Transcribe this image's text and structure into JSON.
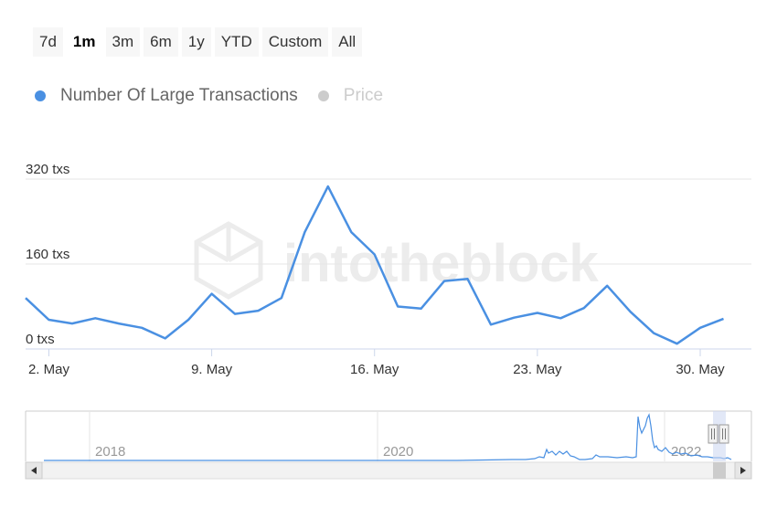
{
  "range_selector": {
    "buttons": [
      "7d",
      "1m",
      "3m",
      "6m",
      "1y",
      "YTD",
      "Custom",
      "All"
    ],
    "active": "1m"
  },
  "legend": [
    {
      "name": "Number Of Large Transactions",
      "color": "#4a90e2",
      "active": true
    },
    {
      "name": "Price",
      "color": "#cccccc",
      "active": false
    }
  ],
  "watermark": "intotheblock",
  "chart_data": {
    "type": "line",
    "series": [
      {
        "name": "Number Of Large Transactions",
        "color": "#4a90e2",
        "x": [
          1,
          2,
          3,
          4,
          5,
          6,
          7,
          8,
          9,
          10,
          11,
          12,
          13,
          14,
          15,
          16,
          17,
          18,
          19,
          20,
          21,
          22,
          23,
          24,
          25,
          26,
          27,
          28,
          29,
          30,
          31
        ],
        "values": [
          96,
          55,
          48,
          58,
          48,
          40,
          20,
          55,
          104,
          66,
          72,
          96,
          220,
          306,
          220,
          178,
          80,
          76,
          128,
          132,
          46,
          59,
          68,
          58,
          77,
          119,
          70,
          30,
          10,
          40,
          57
        ]
      }
    ],
    "x_tick_labels": [
      "2. May",
      "9. May",
      "16. May",
      "23. May",
      "30. May"
    ],
    "x_tick_values": [
      2,
      9,
      16,
      23,
      30
    ],
    "y_tick_labels": [
      "0 txs",
      "160 txs",
      "320 txs"
    ],
    "y_tick_values": [
      0,
      160,
      320
    ],
    "xlim": [
      1,
      32.2
    ],
    "ylim": [
      0,
      320
    ],
    "grid": true
  },
  "navigator": {
    "labels": [
      "2018",
      "2020",
      "2022"
    ],
    "scroll_left_icon": "left-arrow-icon",
    "scroll_right_icon": "right-arrow-icon"
  }
}
